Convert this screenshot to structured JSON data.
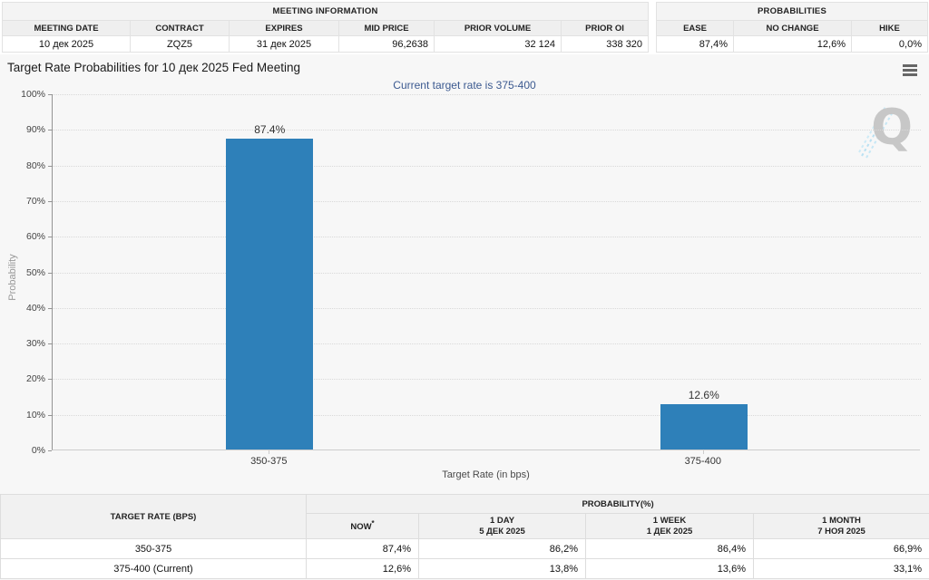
{
  "meeting_info": {
    "title": "MEETING INFORMATION",
    "columns": [
      "MEETING DATE",
      "CONTRACT",
      "EXPIRES",
      "MID PRICE",
      "PRIOR VOLUME",
      "PRIOR OI"
    ],
    "values": [
      "10 дек 2025",
      "ZQZ5",
      "31 дек 2025",
      "96,2638",
      "32 124",
      "338 320"
    ]
  },
  "probabilities_info": {
    "title": "PROBABILITIES",
    "columns": [
      "EASE",
      "NO CHANGE",
      "HIKE"
    ],
    "values": [
      "87,4%",
      "12,6%",
      "0,0%"
    ]
  },
  "chart_data": {
    "type": "bar",
    "title": "Target Rate Probabilities for 10 дек 2025 Fed Meeting",
    "subtitle": "Current target rate is 375-400",
    "categories": [
      "350-375",
      "375-400"
    ],
    "values": [
      87.4,
      12.6
    ],
    "bar_labels": [
      "87.4%",
      "12.6%"
    ],
    "xlabel": "Target Rate (in bps)",
    "ylabel": "Probability",
    "ylim": [
      0,
      100
    ],
    "ytick_step": 10,
    "ytick_suffix": "%",
    "grid": true,
    "legend": "none",
    "bar_color": "#2e80b9"
  },
  "bottom_table": {
    "col1_header": "TARGET RATE (BPS)",
    "group_header": "PROBABILITY(%)",
    "now_header": "NOW",
    "now_sup": "*",
    "period_headers": [
      {
        "label": "1 DAY",
        "date": "5 ДЕК 2025"
      },
      {
        "label": "1 WEEK",
        "date": "1 ДЕК 2025"
      },
      {
        "label": "1 MONTH",
        "date": "7 НОЯ 2025"
      }
    ],
    "rows": [
      {
        "label": "350-375",
        "now": "87,4%",
        "day": "86,2%",
        "week": "86,4%",
        "month": "66,9%"
      },
      {
        "label": "375-400 (Current)",
        "now": "12,6%",
        "day": "13,8%",
        "week": "13,6%",
        "month": "33,1%"
      }
    ]
  }
}
